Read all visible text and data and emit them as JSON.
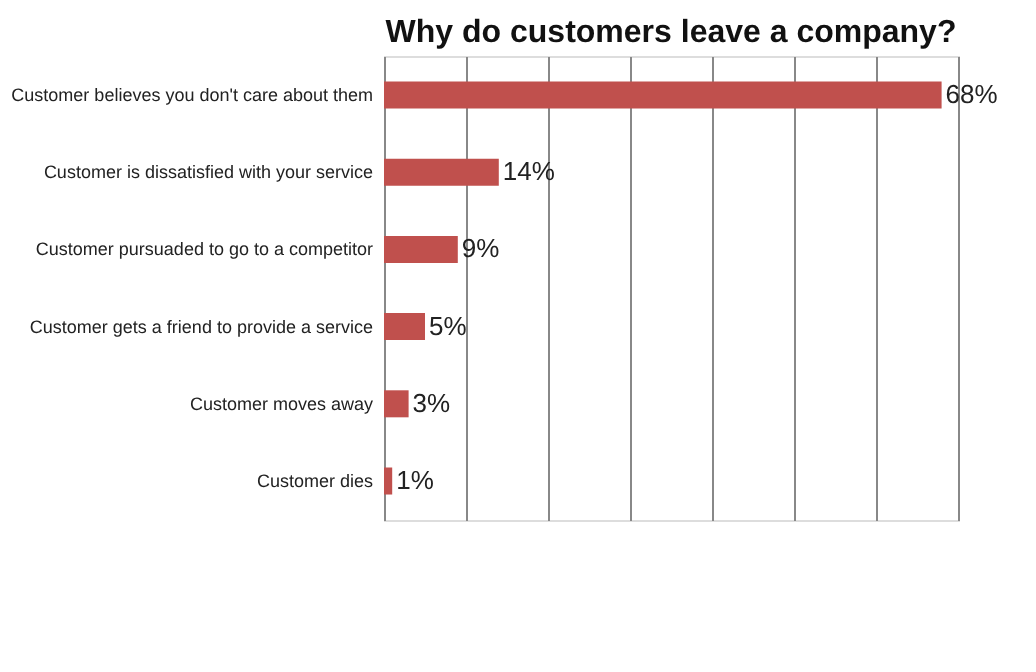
{
  "chart_data": {
    "type": "bar",
    "orientation": "horizontal",
    "title": "Why do customers leave a company?",
    "categories": [
      "Customer believes you don't care about them",
      "Customer is dissatisfied with your service",
      "Customer pursuaded to go to a competitor",
      "Customer gets a friend to provide a service",
      "Customer moves away",
      "Customer dies"
    ],
    "values": [
      68,
      14,
      9,
      5,
      3,
      1
    ],
    "value_labels": [
      "68%",
      "14%",
      "9%",
      "5%",
      "3%",
      "1%"
    ],
    "color": "#c0504d",
    "xlim": [
      0,
      70
    ],
    "xticks": [
      {
        "value": 0,
        "label": null
      },
      {
        "value": 10,
        "label": null
      },
      {
        "value": 20,
        "label": null
      },
      {
        "value": 30,
        "label": null
      },
      {
        "value": 40,
        "label": null
      },
      {
        "value": 50,
        "label": null
      },
      {
        "value": 60,
        "label": null
      },
      {
        "value": 70,
        "label": null
      }
    ],
    "grid": "x",
    "tick_labels": "y"
  }
}
